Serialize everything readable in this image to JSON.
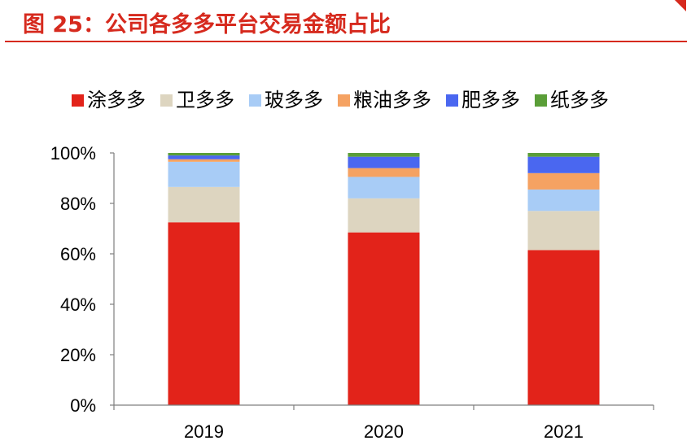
{
  "figure_title": "图 25：公司各多多平台交易金额占比",
  "chart_data": {
    "type": "bar",
    "stacked": true,
    "categories": [
      "2019",
      "2020",
      "2021"
    ],
    "ylim": [
      0,
      100
    ],
    "yticks": [
      "0%",
      "20%",
      "40%",
      "60%",
      "80%",
      "100%"
    ],
    "legend_position": "top",
    "series": [
      {
        "name": "涂多多",
        "color": "#e2231a",
        "values": [
          72.5,
          68.5,
          61.5
        ]
      },
      {
        "name": "卫多多",
        "color": "#ddd5c0",
        "values": [
          14.0,
          13.5,
          15.5
        ]
      },
      {
        "name": "玻多多",
        "color": "#a8ccf6",
        "values": [
          10.0,
          8.5,
          8.5
        ]
      },
      {
        "name": "粮油多多",
        "color": "#f5a262",
        "values": [
          1.0,
          3.5,
          6.5
        ]
      },
      {
        "name": "肥多多",
        "color": "#4a67f0",
        "values": [
          1.5,
          4.5,
          6.5
        ]
      },
      {
        "name": "纸多多",
        "color": "#5a9e38",
        "values": [
          1.0,
          1.5,
          1.5
        ]
      }
    ]
  }
}
